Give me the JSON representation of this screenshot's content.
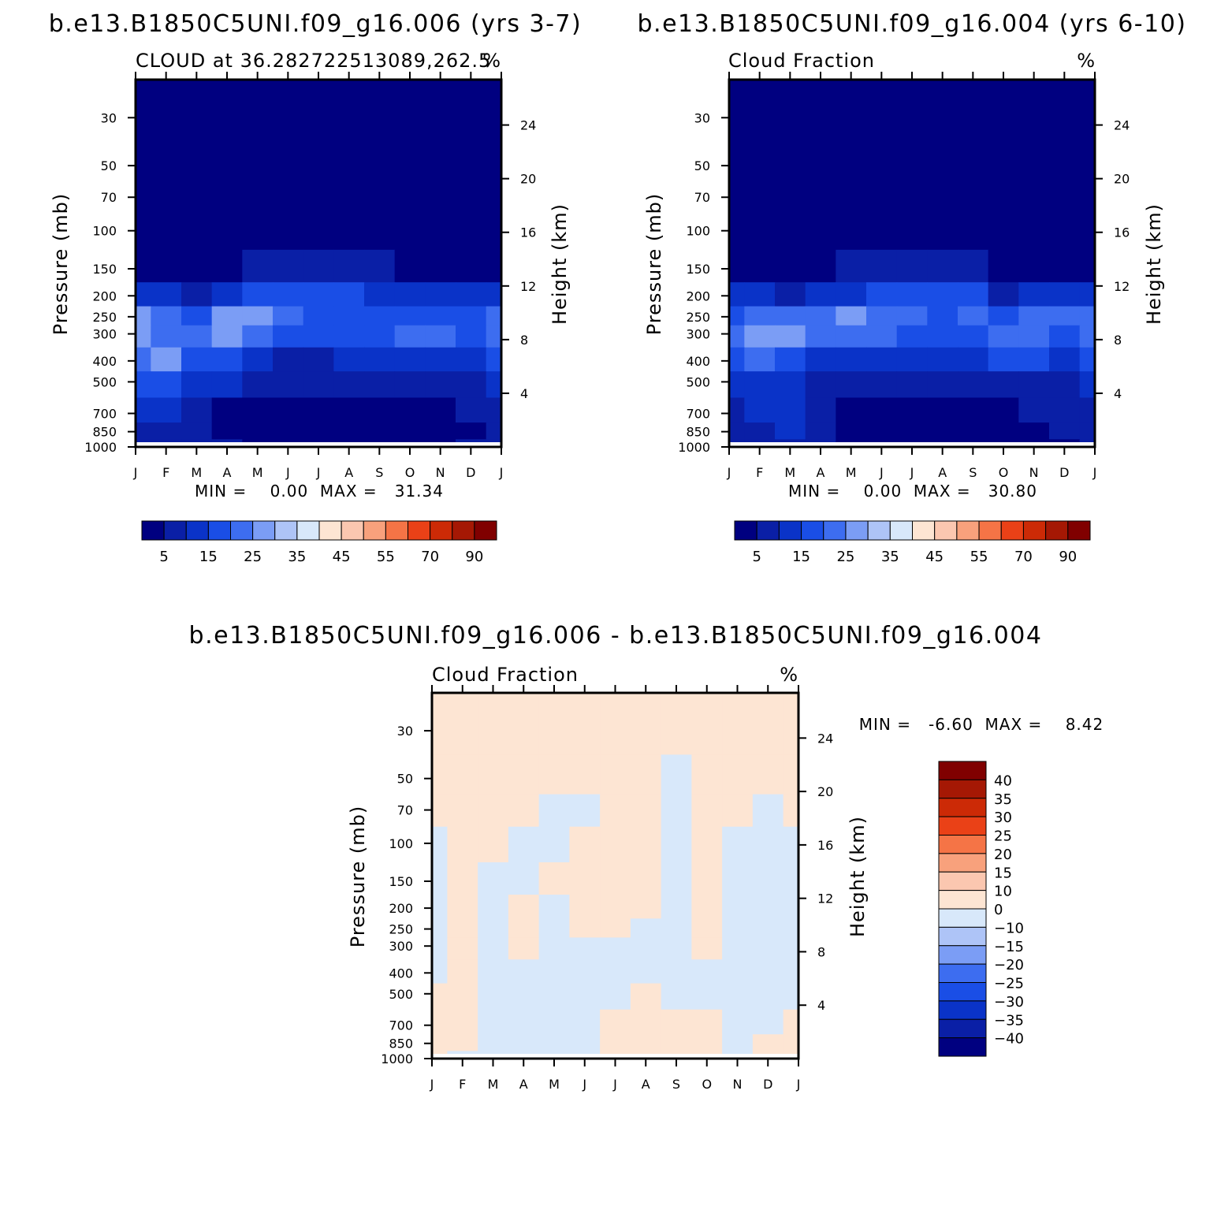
{
  "palette": {
    "abs": [
      "#000080",
      "#0a1fa6",
      "#0a33c8",
      "#1a4ee6",
      "#3d6df0",
      "#7b9df5",
      "#aec4f7",
      "#d8e8fa",
      "#fde5d3",
      "#fbc7b0",
      "#f8a17c",
      "#f57446",
      "#ea4117",
      "#cc2a06",
      "#a51804",
      "#800000"
    ],
    "diff": [
      "#000080",
      "#0a1fa6",
      "#0a33c8",
      "#1a4ee6",
      "#3d6df0",
      "#7b9df5",
      "#aec4f7",
      "#d8e8fa",
      "#fde5d3",
      "#fbc7b0",
      "#f8a17c",
      "#f57446",
      "#ea4117",
      "#cc2a06",
      "#a51804",
      "#800000"
    ]
  },
  "panels": [
    {
      "title": "b.e13.B1850C5UNI.f09_g16.006 (yrs 3-7)",
      "left_label": "CLOUD at 36.282722513089,262.5",
      "right_label": "%",
      "ylabel": "Pressure (mb)",
      "ylabel_right": "Height (km)",
      "minmax": "MIN =    0.00  MAX =   31.34",
      "colorbar_labels": [
        "5",
        "15",
        "25",
        "35",
        "45",
        "55",
        "70",
        "90"
      ]
    },
    {
      "title": "b.e13.B1850C5UNI.f09_g16.004 (yrs 6-10)",
      "left_label": "Cloud Fraction",
      "right_label": "%",
      "ylabel": "Pressure (mb)",
      "ylabel_right": "Height (km)",
      "minmax": "MIN =    0.00  MAX =   30.80",
      "colorbar_labels": [
        "5",
        "15",
        "25",
        "35",
        "45",
        "55",
        "70",
        "90"
      ]
    },
    {
      "title": "b.e13.B1850C5UNI.f09_g16.006 - b.e13.B1850C5UNI.f09_g16.004",
      "left_label": "Cloud Fraction",
      "right_label": "%",
      "ylabel": "Pressure (mb)",
      "ylabel_right": "Height (km)",
      "minmax": "MIN =   -6.60  MAX =    8.42",
      "colorbar_labels": [
        "40",
        "35",
        "30",
        "25",
        "20",
        "15",
        "10",
        "0",
        "-10",
        "-15",
        "-20",
        "-25",
        "-30",
        "-35",
        "-40"
      ]
    }
  ],
  "chart_data": [
    {
      "type": "heatmap",
      "title": "b.e13.B1850C5UNI.f09_g16.006 (yrs 3-7)",
      "xlabel": "",
      "ylabel": "Pressure (mb)",
      "ylabel_right": "Height (km)",
      "x_ticks": [
        "J",
        "F",
        "M",
        "A",
        "M",
        "J",
        "J",
        "A",
        "S",
        "O",
        "N",
        "D",
        "J"
      ],
      "y_ticks": [
        "30",
        "50",
        "70",
        "100",
        "150",
        "200",
        "250",
        "300",
        "400",
        "500",
        "700",
        "850",
        "1000"
      ],
      "y_right_ticks": [
        "24",
        "20",
        "16",
        "12",
        "8",
        "4"
      ],
      "y_scale": "log",
      "ylim": [
        1000,
        20
      ],
      "units": "%",
      "levels": [
        5,
        10,
        15,
        20,
        25,
        30,
        35,
        40,
        45,
        50,
        55,
        60,
        70,
        80,
        90
      ],
      "min": 0.0,
      "max": 31.34,
      "z": [
        [
          0,
          0,
          0,
          0,
          0,
          0,
          0,
          0,
          0,
          0,
          0,
          0,
          0
        ],
        [
          0,
          0,
          0,
          0,
          0,
          0,
          0,
          0,
          0,
          0,
          0,
          0,
          0
        ],
        [
          0,
          0,
          0,
          0,
          0,
          0,
          0,
          0,
          0,
          0,
          0,
          0,
          0
        ],
        [
          0,
          0,
          0,
          0,
          0,
          0,
          0,
          0,
          0,
          0,
          0,
          0,
          0
        ],
        [
          3,
          3,
          3,
          4,
          6,
          6,
          6,
          6,
          5,
          4,
          4,
          3,
          3
        ],
        [
          13,
          13,
          9,
          14,
          17,
          17,
          16,
          15,
          12,
          11,
          10,
          11,
          13
        ],
        [
          26,
          24,
          18,
          25,
          26,
          20,
          19,
          17,
          19,
          19,
          18,
          16,
          21
        ],
        [
          27,
          24,
          20,
          27,
          23,
          18,
          17,
          16,
          17,
          24,
          23,
          17,
          24
        ],
        [
          22,
          26,
          18,
          15,
          13,
          9,
          9,
          10,
          13,
          14,
          14,
          12,
          17
        ],
        [
          16,
          17,
          12,
          10,
          6,
          5,
          5,
          6,
          5,
          5,
          6,
          7,
          10
        ],
        [
          10,
          10,
          9,
          4,
          3,
          2,
          2,
          2,
          4,
          4,
          4,
          6,
          8
        ],
        [
          8,
          8,
          7,
          4,
          3,
          2,
          2,
          2,
          3,
          3,
          3,
          4,
          7
        ],
        [
          6,
          6,
          6,
          5,
          4,
          3,
          3,
          3,
          4,
          4,
          4,
          5,
          6
        ]
      ]
    },
    {
      "type": "heatmap",
      "title": "b.e13.B1850C5UNI.f09_g16.004 (yrs 6-10)",
      "xlabel": "",
      "ylabel": "Pressure (mb)",
      "ylabel_right": "Height (km)",
      "x_ticks": [
        "J",
        "F",
        "M",
        "A",
        "M",
        "J",
        "J",
        "A",
        "S",
        "O",
        "N",
        "D",
        "J"
      ],
      "y_ticks": [
        "30",
        "50",
        "70",
        "100",
        "150",
        "200",
        "250",
        "300",
        "400",
        "500",
        "700",
        "850",
        "1000"
      ],
      "y_right_ticks": [
        "24",
        "20",
        "16",
        "12",
        "8",
        "4"
      ],
      "y_scale": "log",
      "ylim": [
        1000,
        20
      ],
      "units": "%",
      "levels": [
        5,
        10,
        15,
        20,
        25,
        30,
        35,
        40,
        45,
        50,
        55,
        60,
        70,
        80,
        90
      ],
      "min": 0.0,
      "max": 30.8,
      "z": [
        [
          0,
          0,
          0,
          0,
          0,
          0,
          0,
          0,
          0,
          0,
          0,
          0,
          0
        ],
        [
          0,
          0,
          0,
          0,
          0,
          0,
          0,
          0,
          0,
          0,
          0,
          0,
          0
        ],
        [
          0,
          0,
          0,
          0,
          0,
          0,
          0,
          0,
          0,
          0,
          0,
          0,
          0
        ],
        [
          0,
          0,
          0,
          0,
          0,
          0,
          0,
          0,
          0,
          0,
          0,
          0,
          0
        ],
        [
          3,
          3,
          3,
          4,
          6,
          7,
          7,
          7,
          6,
          4,
          4,
          3,
          3
        ],
        [
          12,
          10,
          9,
          11,
          14,
          15,
          15,
          15,
          16,
          9,
          12,
          10,
          12
        ],
        [
          19,
          20,
          20,
          23,
          25,
          20,
          20,
          19,
          22,
          18,
          23,
          20,
          21
        ],
        [
          22,
          25,
          27,
          24,
          24,
          21,
          16,
          19,
          17,
          20,
          24,
          19,
          22
        ],
        [
          17,
          21,
          19,
          14,
          11,
          10,
          12,
          11,
          12,
          15,
          15,
          14,
          17
        ],
        [
          12,
          14,
          12,
          7,
          6,
          5,
          6,
          5,
          5,
          7,
          8,
          8,
          12
        ],
        [
          9,
          10,
          10,
          6,
          3,
          2,
          2,
          2,
          3,
          3,
          5,
          6,
          9
        ],
        [
          7,
          8,
          10,
          6,
          4,
          2,
          2,
          2,
          3,
          3,
          4,
          5,
          7
        ],
        [
          5,
          6,
          6,
          5,
          4,
          3,
          3,
          3,
          3,
          4,
          4,
          4,
          5
        ]
      ]
    },
    {
      "type": "heatmap",
      "title": "b.e13.B1850C5UNI.f09_g16.006 - b.e13.B1850C5UNI.f09_g16.004",
      "xlabel": "",
      "ylabel": "Pressure (mb)",
      "ylabel_right": "Height (km)",
      "x_ticks": [
        "J",
        "F",
        "M",
        "A",
        "M",
        "J",
        "J",
        "A",
        "S",
        "O",
        "N",
        "D",
        "J"
      ],
      "y_ticks": [
        "30",
        "50",
        "70",
        "100",
        "150",
        "200",
        "250",
        "300",
        "400",
        "500",
        "700",
        "850",
        "1000"
      ],
      "y_right_ticks": [
        "24",
        "20",
        "16",
        "12",
        "8",
        "4"
      ],
      "y_scale": "log",
      "ylim": [
        1000,
        20
      ],
      "units": "%",
      "levels": [
        -40,
        -35,
        -30,
        -25,
        -20,
        -15,
        -10,
        0,
        10,
        15,
        20,
        25,
        30,
        35,
        40
      ],
      "min": -6.6,
      "max": 8.42,
      "z": [
        [
          0.1,
          0.1,
          0.1,
          0.1,
          0.1,
          0.1,
          0.1,
          0.1,
          0.1,
          0.1,
          0.1,
          0.1,
          0.1
        ],
        [
          0.1,
          0.1,
          0.1,
          0.1,
          0.1,
          0.1,
          0.1,
          0.1,
          -0.1,
          0.1,
          0.1,
          0.1,
          0.1
        ],
        [
          0.1,
          0.1,
          0.1,
          0.1,
          -0.1,
          -0.1,
          0.1,
          0.1,
          -0.1,
          0.1,
          0.1,
          -0.1,
          0.1
        ],
        [
          -0.1,
          0.1,
          0.1,
          -0.1,
          -0.1,
          0.1,
          0.1,
          0.1,
          -0.1,
          0.1,
          -0.1,
          -0.1,
          -0.1
        ],
        [
          -0.2,
          0.1,
          -0.2,
          -0.2,
          0.2,
          0.2,
          0.2,
          0.1,
          -0.2,
          0.2,
          -0.2,
          -0.2,
          -0.2
        ],
        [
          -1,
          1,
          -2,
          2,
          -1,
          2,
          2,
          0.5,
          -1,
          1,
          -1,
          -1,
          -1
        ],
        [
          -2,
          2,
          -2,
          2,
          -1,
          1,
          1,
          -1,
          -1,
          2,
          -1,
          -1,
          -1
        ],
        [
          -3,
          2,
          -3,
          3,
          -2,
          -2,
          -2,
          -1,
          -1,
          2,
          -2,
          -1,
          -2
        ],
        [
          -3,
          3,
          -3,
          -2,
          -1,
          -1,
          -3,
          -2,
          -1,
          -1,
          -2,
          -2,
          -2
        ],
        [
          4,
          4,
          -1,
          -1,
          -1,
          -1,
          -2,
          2,
          -1,
          -2,
          -2,
          -1,
          -2
        ],
        [
          2,
          2,
          -1,
          -2,
          -1,
          -1,
          1,
          1,
          1,
          2,
          -2,
          -1,
          2
        ],
        [
          1,
          1,
          -1,
          -1,
          -1,
          -1,
          1,
          1,
          1,
          1,
          -1,
          1,
          1
        ],
        [
          1,
          -1,
          -1,
          -1,
          -1,
          -1,
          1,
          1,
          1,
          1,
          -1,
          1,
          1
        ]
      ]
    }
  ]
}
